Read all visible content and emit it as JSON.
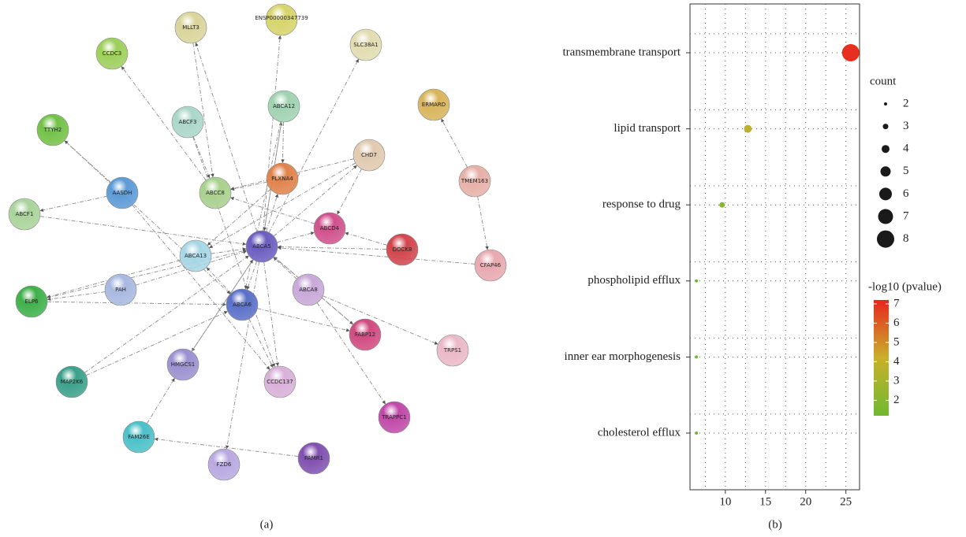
{
  "network": {
    "nodes": [
      {
        "label": "ENSP00000347739"
      },
      {
        "label": "MLLT3"
      },
      {
        "label": "SLC38A1"
      },
      {
        "label": "CCDC3"
      },
      {
        "label": "ABCA12"
      },
      {
        "label": "ERMARD"
      },
      {
        "label": "ABCF3"
      },
      {
        "label": "TTYH2"
      },
      {
        "label": "CHD7"
      },
      {
        "label": "PLXNA4"
      },
      {
        "label": "TMEM163"
      },
      {
        "label": "AASDH"
      },
      {
        "label": "ABCC8"
      },
      {
        "label": "ABCF1"
      },
      {
        "label": "ABCD4"
      },
      {
        "label": "DOCK8"
      },
      {
        "label": "ABCA5"
      },
      {
        "label": "ABCA13"
      },
      {
        "label": "CFAP46"
      },
      {
        "label": "PAH"
      },
      {
        "label": "ABCA8"
      },
      {
        "label": "ELP6"
      },
      {
        "label": "ABCA6"
      },
      {
        "label": "FABP12"
      },
      {
        "label": "TRPS1"
      },
      {
        "label": "HMGCS1"
      },
      {
        "label": "CCDC137"
      },
      {
        "label": "MAP2K6"
      },
      {
        "label": "TRAPPC1"
      },
      {
        "label": "FAM26E"
      },
      {
        "label": "PAMR1"
      },
      {
        "label": "FZD6"
      }
    ],
    "caption": "(a)"
  },
  "chart_data": {
    "type": "dot",
    "caption": "(b)",
    "categories": [
      "transmembrane transport",
      "lipid transport",
      "response to drug",
      "phospholipid efflux",
      "inner ear morphogenesis",
      "cholesterol efflux"
    ],
    "values": [
      25.6,
      12.8,
      9.6,
      6.4,
      6.4,
      6.4
    ],
    "counts": [
      8,
      4,
      3,
      2,
      2,
      2
    ],
    "neg_log10_pvalue": [
      7,
      3.8,
      2,
      1.5,
      1.5,
      1.5
    ],
    "xlim": [
      5.6,
      26.7
    ],
    "xticks": [
      10,
      15,
      20,
      25
    ],
    "grid": true,
    "size_legend": {
      "title": "count",
      "values": [
        2,
        3,
        4,
        5,
        6,
        7,
        8
      ],
      "color": "#1a1a1a"
    },
    "colorbar": {
      "title": "-log10 (pvalue)",
      "lim": [
        1.2,
        7.2
      ],
      "ticks": [
        2,
        3,
        4,
        5,
        6,
        7
      ],
      "colors": [
        "#6fb92f",
        "#c9b02a",
        "#e8261e"
      ]
    }
  }
}
